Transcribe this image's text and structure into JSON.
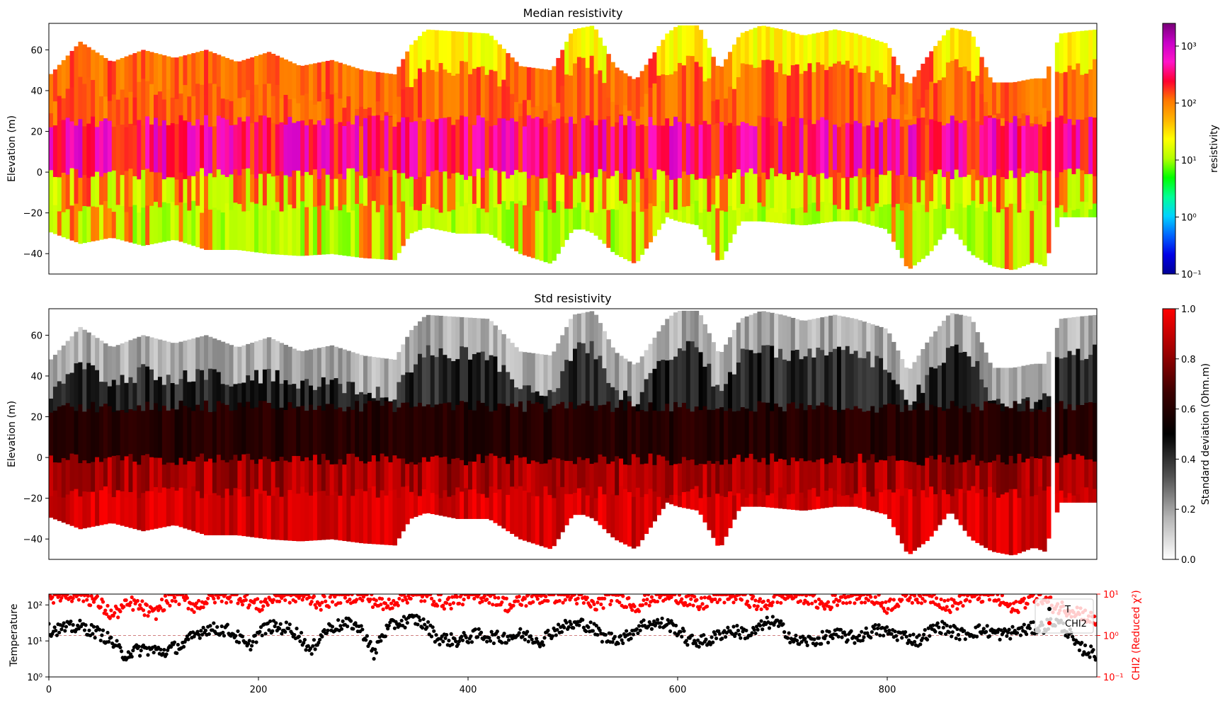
{
  "chart_data": [
    {
      "type": "heatmap",
      "title": "Median resistivity",
      "xlabel": "",
      "ylabel": "Elevation (m)",
      "xlim": [
        0,
        1000
      ],
      "ylim": [
        -50,
        73
      ],
      "yticks": [
        60,
        40,
        20,
        0,
        -20,
        -40
      ],
      "ytick_labels": [
        "60",
        "40",
        "20",
        "0",
        "−20",
        "−40"
      ],
      "terrain": {
        "x": [
          0,
          30,
          60,
          90,
          120,
          150,
          180,
          210,
          240,
          270,
          300,
          330,
          345,
          360,
          390,
          420,
          450,
          480,
          500,
          510,
          520,
          540,
          560,
          590,
          600,
          620,
          640,
          660,
          680,
          700,
          720,
          750,
          770,
          800,
          820,
          840,
          860,
          880,
          900,
          920,
          940,
          950,
          965,
          980,
          1000
        ],
        "top": [
          47,
          64,
          54,
          60,
          56,
          60,
          54,
          59,
          52,
          55,
          50,
          48,
          62,
          70,
          69,
          68,
          52,
          50,
          70,
          71,
          72,
          52,
          45,
          68,
          72,
          72,
          50,
          68,
          72,
          70,
          67,
          70,
          68,
          63,
          42,
          58,
          71,
          69,
          44,
          44,
          46,
          46,
          68,
          69,
          70
        ],
        "bottom": [
          -29,
          -35,
          -32,
          -36,
          -33,
          -38,
          -38,
          -40,
          -41,
          -40,
          -42,
          -43,
          -30,
          -27,
          -30,
          -30,
          -40,
          -45,
          -28,
          -28,
          -30,
          -40,
          -45,
          -22,
          -24,
          -26,
          -45,
          -24,
          -24,
          -25,
          -26,
          -24,
          -24,
          -28,
          -48,
          -40,
          -26,
          -40,
          -46,
          -48,
          -44,
          -46,
          -22,
          -22,
          -22
        ]
      },
      "colorbar": {
        "label": "resistivity",
        "scale": "log",
        "range": [
          0.1,
          2500
        ],
        "tick_values": [
          0.1,
          1,
          10,
          100,
          1000
        ],
        "tick_labels": [
          "10⁻¹",
          "10⁰",
          "10¹",
          "10²",
          "10³"
        ],
        "colormap": [
          "#000096",
          "#0000e6",
          "#0064ff",
          "#00d2ff",
          "#00ff96",
          "#00ff00",
          "#b4ff00",
          "#ffff00",
          "#ffb400",
          "#ff7800",
          "#ff0030",
          "#ff14c8",
          "#c800c8",
          "#780078"
        ]
      }
    },
    {
      "type": "heatmap",
      "title": "Std resistivity",
      "xlabel": "",
      "ylabel": "Elevation (m)",
      "xlim": [
        0,
        1000
      ],
      "ylim": [
        -50,
        73
      ],
      "yticks": [
        60,
        40,
        20,
        0,
        -20,
        -40
      ],
      "ytick_labels": [
        "60",
        "40",
        "20",
        "0",
        "−20",
        "−40"
      ],
      "colorbar": {
        "label": "Standard deviation (Ohm.m)",
        "scale": "linear",
        "range": [
          0,
          1
        ],
        "tick_values": [
          0.0,
          0.2,
          0.4,
          0.6,
          0.8,
          1.0
        ],
        "tick_labels": [
          "0.0",
          "0.2",
          "0.4",
          "0.6",
          "0.8",
          "1.0"
        ],
        "colormap": [
          "#ffffff",
          "#b4b4b4",
          "#505050",
          "#000000",
          "#3c0000",
          "#a00000",
          "#ff0000"
        ]
      }
    },
    {
      "type": "scatter",
      "title": "",
      "xlabel": "",
      "ylabel": "Temperature",
      "y2label": "CHI2 (Reduced χ²)",
      "xlim": [
        0,
        1000
      ],
      "xticks": [
        0,
        200,
        400,
        600,
        800
      ],
      "xtick_labels": [
        "0",
        "200",
        "400",
        "600",
        "800"
      ],
      "ylim": [
        1,
        200
      ],
      "yscale": "log",
      "yticks": [
        1,
        10,
        100
      ],
      "ytick_labels": [
        "10⁰",
        "10¹",
        "10²"
      ],
      "y2lim": [
        0.1,
        10
      ],
      "y2scale": "log",
      "y2ticks": [
        0.1,
        1,
        10
      ],
      "y2tick_labels": [
        "10⁻¹",
        "10⁰",
        "10¹"
      ],
      "hline": {
        "axis": "y2",
        "value": 1,
        "style": "dashed"
      },
      "legend": {
        "placement": "top-right",
        "entries": [
          "T",
          "CHI2"
        ]
      },
      "series": [
        {
          "name": "T",
          "axis": "y",
          "color": "#000000",
          "trend": {
            "x": [
              0,
              30,
              50,
              70,
              90,
              110,
              130,
              150,
              170,
              190,
              210,
              230,
              250,
              270,
              290,
              310,
              330,
              350,
              370,
              390,
              410,
              430,
              450,
              470,
              490,
              510,
              530,
              550,
              570,
              590,
              610,
              630,
              650,
              670,
              690,
              710,
              730,
              750,
              770,
              790,
              810,
              830,
              850,
              870,
              890,
              910,
              930,
              950,
              960,
              980,
              1000
            ],
            "y": [
              20,
              25,
              15,
              4,
              6,
              5,
              8,
              22,
              20,
              6,
              25,
              22,
              4,
              25,
              30,
              3,
              30,
              40,
              12,
              10,
              15,
              12,
              15,
              10,
              25,
              30,
              12,
              12,
              30,
              30,
              10,
              10,
              20,
              15,
              35,
              10,
              10,
              15,
              12,
              20,
              15,
              10,
              25,
              15,
              20,
              15,
              20,
              25,
              35,
              7,
              4
            ]
          }
        },
        {
          "name": "CHI2",
          "axis": "y2",
          "color": "#ff0000",
          "trend": {
            "x": [
              0,
              30,
              60,
              80,
              100,
              120,
              140,
              160,
              180,
              200,
              220,
              240,
              260,
              280,
              300,
              320,
              340,
              360,
              380,
              400,
              420,
              440,
              460,
              480,
              500,
              520,
              540,
              560,
              580,
              600,
              620,
              640,
              660,
              680,
              700,
              720,
              740,
              760,
              780,
              800,
              820,
              840,
              860,
              880,
              900,
              920,
              940,
              960,
              980,
              1000
            ],
            "y": [
              9,
              10,
              3,
              6,
              3,
              9,
              5,
              9,
              9,
              5,
              9,
              9,
              6,
              9,
              9,
              5,
              9,
              9,
              6,
              9,
              9,
              5,
              8,
              9,
              9,
              5,
              9,
              5,
              9,
              9,
              5,
              9,
              9,
              5,
              9,
              9,
              5,
              9,
              9,
              5,
              9,
              9,
              5,
              9,
              9,
              4,
              9,
              5,
              4,
              2
            ]
          }
        }
      ]
    }
  ]
}
